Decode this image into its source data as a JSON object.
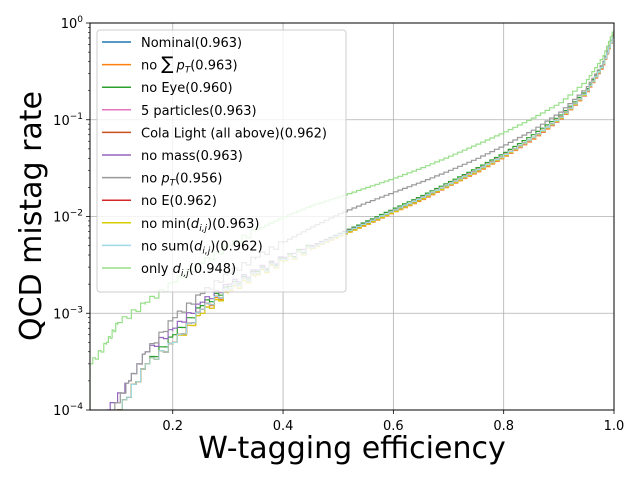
{
  "chart_data": {
    "type": "line",
    "title": "",
    "xlabel": "W-tagging efficiency",
    "ylabel": "QCD mistag rate",
    "xlim": [
      0.05,
      1.0
    ],
    "ylim": [
      0.0001,
      1
    ],
    "yscale": "log",
    "grid": true,
    "legend_position": "top-left",
    "x_ticks": [
      {
        "value": 0.2,
        "label": "0.2"
      },
      {
        "value": 0.4,
        "label": "0.4"
      },
      {
        "value": 0.6,
        "label": "0.6"
      },
      {
        "value": 0.8,
        "label": "0.8"
      },
      {
        "value": 1.0,
        "label": "1.0"
      }
    ],
    "y_ticks": [
      {
        "value": 0.0001,
        "base": "10",
        "exp": "−4"
      },
      {
        "value": 0.001,
        "base": "10",
        "exp": "−3"
      },
      {
        "value": 0.01,
        "base": "10",
        "exp": "−2"
      },
      {
        "value": 0.1,
        "base": "10",
        "exp": "−1"
      },
      {
        "value": 1,
        "base": "10",
        "exp": "0"
      }
    ],
    "series": [
      {
        "name": "Nominal(0.963)",
        "color": "#1f77b4",
        "x": [
          0.1,
          0.15,
          0.2,
          0.25,
          0.3,
          0.35,
          0.4,
          0.45,
          0.5,
          0.55,
          0.6,
          0.65,
          0.7,
          0.75,
          0.8,
          0.85,
          0.9,
          0.95,
          0.98,
          1.0
        ],
        "y": [
          0.0001,
          0.0003,
          0.0005,
          0.0011,
          0.0018,
          0.0026,
          0.0036,
          0.0048,
          0.0064,
          0.0085,
          0.0115,
          0.0155,
          0.0215,
          0.03,
          0.043,
          0.065,
          0.105,
          0.2,
          0.38,
          0.8
        ]
      },
      {
        "name": "no ∑ p_T(0.963)",
        "color": "#ff7f0e",
        "x": [
          0.1,
          0.15,
          0.2,
          0.25,
          0.3,
          0.35,
          0.4,
          0.45,
          0.5,
          0.55,
          0.6,
          0.65,
          0.7,
          0.75,
          0.8,
          0.85,
          0.9,
          0.95,
          0.98,
          1.0
        ],
        "y": [
          0.0001,
          0.0003,
          0.0005,
          0.0011,
          0.0017,
          0.0025,
          0.0035,
          0.0047,
          0.0063,
          0.0083,
          0.0112,
          0.015,
          0.021,
          0.029,
          0.042,
          0.063,
          0.102,
          0.195,
          0.37,
          0.8
        ]
      },
      {
        "name": "no Eye(0.960)",
        "color": "#2ca02c",
        "x": [
          0.1,
          0.15,
          0.2,
          0.25,
          0.3,
          0.35,
          0.4,
          0.45,
          0.5,
          0.55,
          0.6,
          0.65,
          0.7,
          0.75,
          0.8,
          0.85,
          0.9,
          0.95,
          0.98,
          1.0
        ],
        "y": [
          0.0001,
          0.0003,
          0.0006,
          0.0012,
          0.0019,
          0.0027,
          0.0037,
          0.005,
          0.0067,
          0.009,
          0.0122,
          0.0165,
          0.023,
          0.032,
          0.046,
          0.07,
          0.112,
          0.21,
          0.4,
          0.85
        ]
      },
      {
        "name": "5 particles(0.963)",
        "color": "#e377c2",
        "x": [
          0.1,
          0.15,
          0.2,
          0.25,
          0.3,
          0.35,
          0.4,
          0.45,
          0.5,
          0.55,
          0.6,
          0.65,
          0.7,
          0.75,
          0.8,
          0.85,
          0.9,
          0.95,
          0.98,
          1.0
        ],
        "y": [
          0.0001,
          0.0003,
          0.0005,
          0.001,
          0.0017,
          0.0025,
          0.0035,
          0.0047,
          0.0063,
          0.0084,
          0.0113,
          0.0152,
          0.0212,
          0.0295,
          0.0425,
          0.064,
          0.103,
          0.197,
          0.375,
          0.8
        ]
      },
      {
        "name": "Cola Light (all above)(0.962)",
        "color": "#c8501e",
        "x": [
          0.1,
          0.15,
          0.2,
          0.25,
          0.3,
          0.35,
          0.4,
          0.45,
          0.5,
          0.55,
          0.6,
          0.65,
          0.7,
          0.75,
          0.8,
          0.85,
          0.9,
          0.95,
          0.98,
          1.0
        ],
        "y": [
          0.0001,
          0.0003,
          0.0005,
          0.0011,
          0.0018,
          0.0026,
          0.0036,
          0.0048,
          0.0064,
          0.0086,
          0.0116,
          0.0157,
          0.0218,
          0.0305,
          0.0438,
          0.066,
          0.107,
          0.203,
          0.385,
          0.8
        ]
      },
      {
        "name": "no mass(0.963)",
        "color": "#9467bd",
        "x": [
          0.08,
          0.12,
          0.15,
          0.2,
          0.25,
          0.3,
          0.35,
          0.4,
          0.45,
          0.5,
          0.55,
          0.6,
          0.65,
          0.7,
          0.75,
          0.8,
          0.85,
          0.9,
          0.95,
          0.98,
          1.0
        ],
        "y": [
          0.0001,
          0.0002,
          0.0004,
          0.0007,
          0.0013,
          0.002,
          0.0028,
          0.0038,
          0.005,
          0.0066,
          0.0087,
          0.0117,
          0.0158,
          0.0219,
          0.0305,
          0.0436,
          0.066,
          0.106,
          0.201,
          0.38,
          0.8
        ]
      },
      {
        "name": "no p_T(0.956)",
        "color": "#999999",
        "x": [
          0.09,
          0.12,
          0.15,
          0.2,
          0.25,
          0.3,
          0.35,
          0.4,
          0.45,
          0.5,
          0.55,
          0.6,
          0.65,
          0.7,
          0.75,
          0.8,
          0.85,
          0.9,
          0.95,
          0.98,
          1.0
        ],
        "y": [
          0.0001,
          0.0002,
          0.0004,
          0.0009,
          0.0016,
          0.0026,
          0.0038,
          0.0055,
          0.0078,
          0.0107,
          0.014,
          0.018,
          0.023,
          0.03,
          0.04,
          0.055,
          0.078,
          0.12,
          0.22,
          0.4,
          0.85
        ]
      },
      {
        "name": "no E(0.962)",
        "color": "#d62728",
        "x": [
          0.1,
          0.15,
          0.2,
          0.25,
          0.3,
          0.35,
          0.4,
          0.45,
          0.5,
          0.55,
          0.6,
          0.65,
          0.7,
          0.75,
          0.8,
          0.85,
          0.9,
          0.95,
          0.98,
          1.0
        ],
        "y": [
          0.0001,
          0.0003,
          0.0005,
          0.0011,
          0.0018,
          0.0026,
          0.0036,
          0.0048,
          0.0065,
          0.0087,
          0.0117,
          0.0158,
          0.022,
          0.0307,
          0.044,
          0.066,
          0.106,
          0.202,
          0.385,
          0.8
        ]
      },
      {
        "name": "no min(d_{i,j})(0.963)",
        "color": "#d6cc00",
        "x": [
          0.1,
          0.15,
          0.2,
          0.25,
          0.3,
          0.35,
          0.4,
          0.45,
          0.5,
          0.55,
          0.6,
          0.65,
          0.7,
          0.75,
          0.8,
          0.85,
          0.9,
          0.95,
          0.98,
          1.0
        ],
        "y": [
          0.0001,
          0.0003,
          0.0005,
          0.001,
          0.0017,
          0.0025,
          0.0035,
          0.0047,
          0.0063,
          0.0084,
          0.0113,
          0.0153,
          0.0213,
          0.0297,
          0.0428,
          0.065,
          0.104,
          0.199,
          0.38,
          0.8
        ]
      },
      {
        "name": "no sum(d_{i,j})(0.962)",
        "color": "#9edae5",
        "x": [
          0.1,
          0.15,
          0.2,
          0.25,
          0.3,
          0.35,
          0.4,
          0.45,
          0.5,
          0.55,
          0.6,
          0.65,
          0.7,
          0.75,
          0.8,
          0.85,
          0.9,
          0.95,
          0.98,
          1.0
        ],
        "y": [
          0.0001,
          0.0003,
          0.0005,
          0.0011,
          0.0018,
          0.0026,
          0.0036,
          0.0048,
          0.0065,
          0.0087,
          0.0117,
          0.0158,
          0.0219,
          0.0305,
          0.0437,
          0.066,
          0.106,
          0.202,
          0.385,
          0.8
        ]
      },
      {
        "name": "only d_{i,j}(0.948)",
        "color": "#98df8a",
        "x": [
          0.05,
          0.08,
          0.1,
          0.15,
          0.2,
          0.25,
          0.3,
          0.35,
          0.4,
          0.45,
          0.5,
          0.55,
          0.6,
          0.65,
          0.7,
          0.75,
          0.8,
          0.85,
          0.9,
          0.95,
          0.98,
          1.0
        ],
        "y": [
          0.0003,
          0.0005,
          0.0008,
          0.0013,
          0.0021,
          0.0033,
          0.005,
          0.0073,
          0.01,
          0.013,
          0.016,
          0.02,
          0.025,
          0.032,
          0.042,
          0.056,
          0.075,
          0.104,
          0.15,
          0.26,
          0.46,
          0.9
        ]
      }
    ]
  }
}
